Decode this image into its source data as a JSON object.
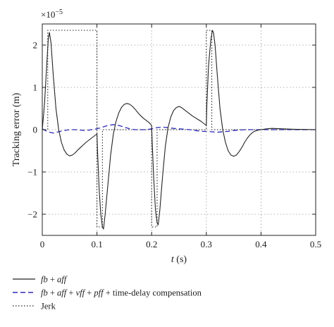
{
  "chart_data": {
    "type": "line",
    "ylabel": "Tracking error (m)",
    "xlabel_var": "t",
    "xlabel_unit": " (s)",
    "exponent": {
      "base": "×10",
      "power": "−5"
    },
    "xlim": [
      0,
      0.5
    ],
    "ylim": [
      -2.5,
      2.5
    ],
    "grid": true,
    "x_ticks": [
      0,
      0.1,
      0.2,
      0.3,
      0.4,
      0.5
    ],
    "x_tick_labels": [
      "0",
      "0.1",
      "0.2",
      "0.3",
      "0.4",
      "0.5"
    ],
    "y_ticks": [
      -2,
      -1,
      0,
      1,
      2
    ],
    "y_tick_labels": [
      "−2",
      "−1",
      "0",
      "1",
      "2"
    ],
    "series": [
      {
        "name_segments": [
          {
            "text": "fb",
            "italic": true
          },
          {
            "text": " + ",
            "italic": false
          },
          {
            "text": "aff",
            "italic": true
          }
        ],
        "color": "#222222",
        "style": "solid",
        "x": [
          0,
          0.004,
          0.008,
          0.011,
          0.013,
          0.016,
          0.02,
          0.025,
          0.03,
          0.035,
          0.04,
          0.045,
          0.05,
          0.055,
          0.06,
          0.065,
          0.07,
          0.075,
          0.08,
          0.085,
          0.09,
          0.095,
          0.1,
          0.101,
          0.104,
          0.107,
          0.11,
          0.112,
          0.115,
          0.12,
          0.125,
          0.13,
          0.135,
          0.14,
          0.145,
          0.15,
          0.155,
          0.16,
          0.165,
          0.17,
          0.175,
          0.18,
          0.185,
          0.19,
          0.195,
          0.2,
          0.201,
          0.204,
          0.207,
          0.21,
          0.212,
          0.215,
          0.22,
          0.225,
          0.23,
          0.235,
          0.24,
          0.245,
          0.25,
          0.255,
          0.26,
          0.265,
          0.27,
          0.275,
          0.28,
          0.285,
          0.29,
          0.295,
          0.3,
          0.301,
          0.304,
          0.308,
          0.311,
          0.313,
          0.316,
          0.32,
          0.325,
          0.33,
          0.335,
          0.34,
          0.345,
          0.35,
          0.355,
          0.36,
          0.365,
          0.37,
          0.375,
          0.38,
          0.385,
          0.39,
          0.395,
          0.4,
          0.41,
          0.42,
          0.44,
          0.46,
          0.48,
          0.5
        ],
        "y": [
          0,
          0.6,
          1.5,
          2.15,
          2.3,
          2.05,
          1.3,
          0.5,
          0,
          -0.3,
          -0.48,
          -0.58,
          -0.62,
          -0.6,
          -0.55,
          -0.48,
          -0.42,
          -0.36,
          -0.3,
          -0.25,
          -0.2,
          -0.15,
          -0.1,
          -0.5,
          -1.4,
          -2.0,
          -2.3,
          -2.35,
          -2.0,
          -1.3,
          -0.6,
          -0.1,
          0.2,
          0.4,
          0.53,
          0.6,
          0.62,
          0.6,
          0.55,
          0.48,
          0.4,
          0.33,
          0.27,
          0.22,
          0.17,
          0.1,
          -0.3,
          -1.2,
          -1.9,
          -2.2,
          -2.25,
          -1.9,
          -1.1,
          -0.4,
          0.05,
          0.3,
          0.45,
          0.52,
          0.55,
          0.52,
          0.47,
          0.42,
          0.37,
          0.32,
          0.28,
          0.24,
          0.2,
          0.15,
          0.1,
          0.6,
          1.5,
          2.1,
          2.35,
          2.3,
          2.0,
          1.3,
          0.5,
          0,
          -0.3,
          -0.5,
          -0.6,
          -0.63,
          -0.6,
          -0.52,
          -0.42,
          -0.3,
          -0.2,
          -0.12,
          -0.06,
          -0.03,
          -0.01,
          0,
          0.02,
          0.03,
          0.02,
          0.01,
          0.005,
          0
        ]
      },
      {
        "name_segments": [
          {
            "text": "fb",
            "italic": true
          },
          {
            "text": " + ",
            "italic": false
          },
          {
            "text": "aff",
            "italic": true
          },
          {
            "text": " + ",
            "italic": false
          },
          {
            "text": "vff",
            "italic": true
          },
          {
            "text": " + ",
            "italic": false
          },
          {
            "text": "pff",
            "italic": true
          },
          {
            "text": " + time-delay compensation",
            "italic": false
          }
        ],
        "color": "#2b2bb8",
        "style": "dashed",
        "x": [
          0,
          0.01,
          0.02,
          0.03,
          0.04,
          0.05,
          0.06,
          0.07,
          0.08,
          0.09,
          0.1,
          0.11,
          0.12,
          0.13,
          0.14,
          0.15,
          0.16,
          0.17,
          0.18,
          0.19,
          0.2,
          0.21,
          0.22,
          0.23,
          0.24,
          0.25,
          0.26,
          0.27,
          0.28,
          0.29,
          0.3,
          0.31,
          0.32,
          0.33,
          0.34,
          0.35,
          0.36,
          0.37,
          0.38,
          0.39,
          0.4,
          0.45,
          0.5
        ],
        "y": [
          0.02,
          -0.05,
          -0.08,
          -0.05,
          -0.02,
          0,
          0,
          -0.01,
          -0.02,
          0,
          0.02,
          0.06,
          0.1,
          0.12,
          0.1,
          0.06,
          0.02,
          0,
          0,
          0,
          0.02,
          0.05,
          0.06,
          0.05,
          0.03,
          0.02,
          0.01,
          0,
          -0.02,
          -0.04,
          -0.04,
          -0.05,
          -0.06,
          -0.05,
          -0.04,
          -0.02,
          -0.01,
          0,
          0,
          0,
          0,
          0,
          0
        ]
      },
      {
        "name_segments": [
          {
            "text": "Jerk",
            "italic": false
          }
        ],
        "color": "#222222",
        "style": "dotted",
        "x": [
          0,
          0.01,
          0.01,
          0.1,
          0.1,
          0.11,
          0.11,
          0.2,
          0.2,
          0.21,
          0.21,
          0.3,
          0.3,
          0.31,
          0.31,
          0.5
        ],
        "y": [
          0,
          0,
          2.35,
          2.35,
          -2.3,
          -2.3,
          0,
          0,
          -2.3,
          -2.3,
          0,
          0,
          2.35,
          2.35,
          0,
          0
        ]
      }
    ]
  }
}
